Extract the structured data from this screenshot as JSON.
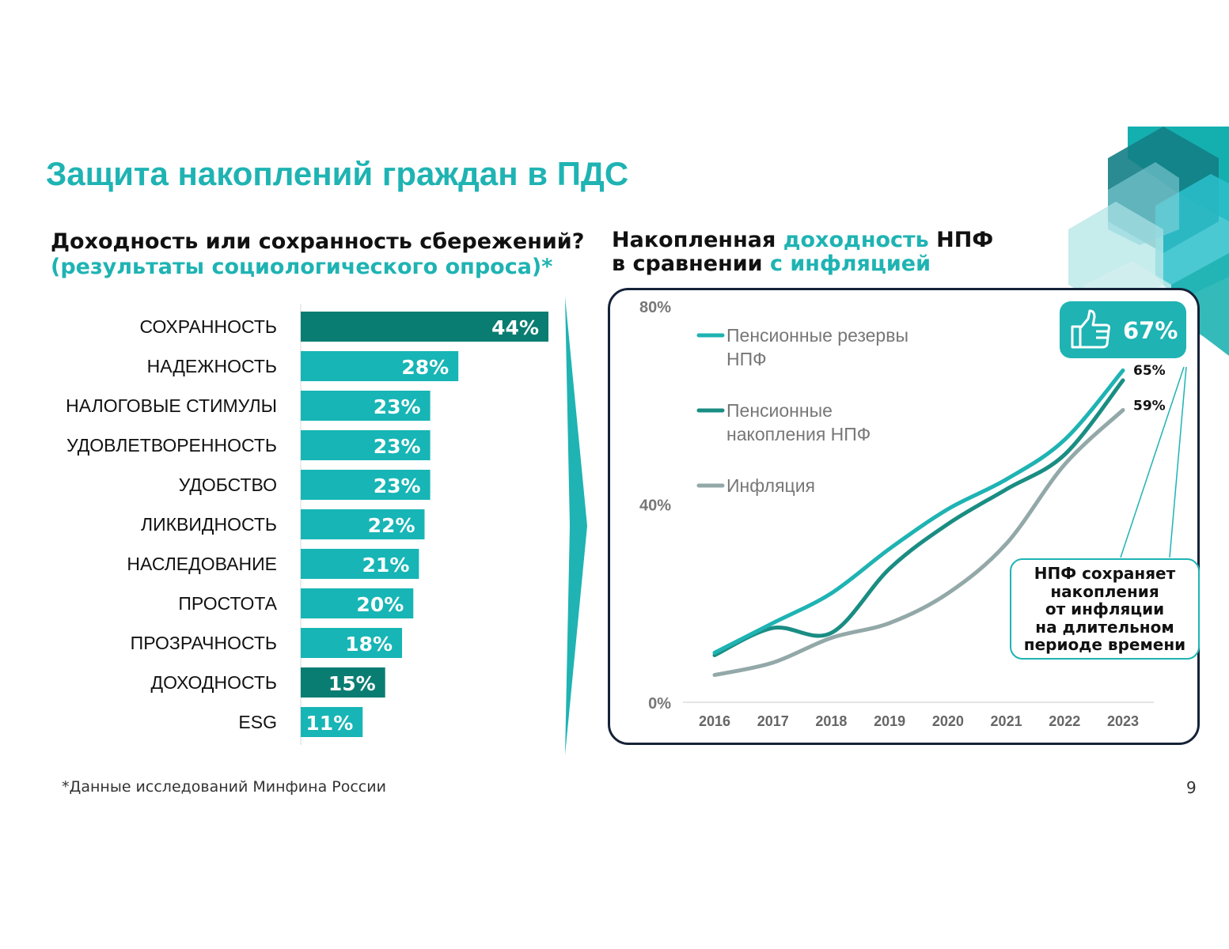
{
  "title": "Защита накоплений граждан в ПДС",
  "left_panel": {
    "heading_line1": "Доходность или сохранность сбережений?",
    "heading_line2": "(результаты социологического опроса)*"
  },
  "right_panel": {
    "heading_line1_a": "Накопленная ",
    "heading_line1_b": "доходность",
    "heading_line1_c": " НПФ",
    "heading_line2_a": "в сравнении ",
    "heading_line2_b": "с инфляцией"
  },
  "badge": {
    "value": "67%",
    "icon": "thumbs-up-icon"
  },
  "callout": {
    "lines": [
      "НПФ сохраняет",
      "накопления",
      "от инфляции",
      "на длительном",
      "периоде времени"
    ]
  },
  "footnote": "*Данные исследований Минфина России",
  "page_number": "9",
  "colors": {
    "accent": "#1fb3b3",
    "dark_teal": "#1a8d83",
    "grey": "#93a8a8",
    "highlight": "#0a7d72",
    "bar": "#17b5b5",
    "frame": "#152238"
  },
  "chart_data": [
    {
      "type": "bar",
      "orientation": "horizontal",
      "categories": [
        "СОХРАННОСТЬ",
        "НАДЕЖНОСТЬ",
        "НАЛОГОВЫЕ СТИМУЛЫ",
        "УДОВЛЕТВОРЕННОСТЬ",
        "УДОБСТВО",
        "ЛИКВИДНОСТЬ",
        "НАСЛЕДОВАНИЕ",
        "ПРОСТОТА",
        "ПРОЗРАЧНОСТЬ",
        "ДОХОДНОСТЬ",
        "ESG"
      ],
      "values": [
        44,
        28,
        23,
        23,
        23,
        22,
        21,
        20,
        18,
        15,
        11
      ],
      "labels": [
        "44%",
        "28%",
        "23%",
        "23%",
        "23%",
        "22%",
        "21%",
        "20%",
        "18%",
        "15%",
        "11%"
      ],
      "highlighted": [
        "СОХРАННОСТЬ",
        "ДОХОДНОСТЬ"
      ],
      "xlim": [
        0,
        44
      ]
    },
    {
      "type": "line",
      "x": [
        "2016",
        "2017",
        "2018",
        "2019",
        "2020",
        "2021",
        "2022",
        "2023"
      ],
      "yticks": [
        "0%",
        "40%",
        "80%"
      ],
      "ylim": [
        0,
        80
      ],
      "series": [
        {
          "name": "Пенсионные резервы НПФ",
          "values": [
            10,
            16,
            22,
            31,
            39,
            45,
            53,
            67
          ],
          "end_label": "",
          "color": "#1fb3b3"
        },
        {
          "name": "Пенсионные накопления НПФ",
          "values": [
            9.5,
            15,
            14,
            27,
            36,
            43,
            50,
            65
          ],
          "end_label": "65%",
          "color": "#1a8d83"
        },
        {
          "name": "Инфляция",
          "values": [
            5.5,
            8,
            13,
            16,
            22,
            32,
            48,
            59
          ],
          "end_label": "59%",
          "color": "#93a8a8"
        }
      ]
    }
  ]
}
